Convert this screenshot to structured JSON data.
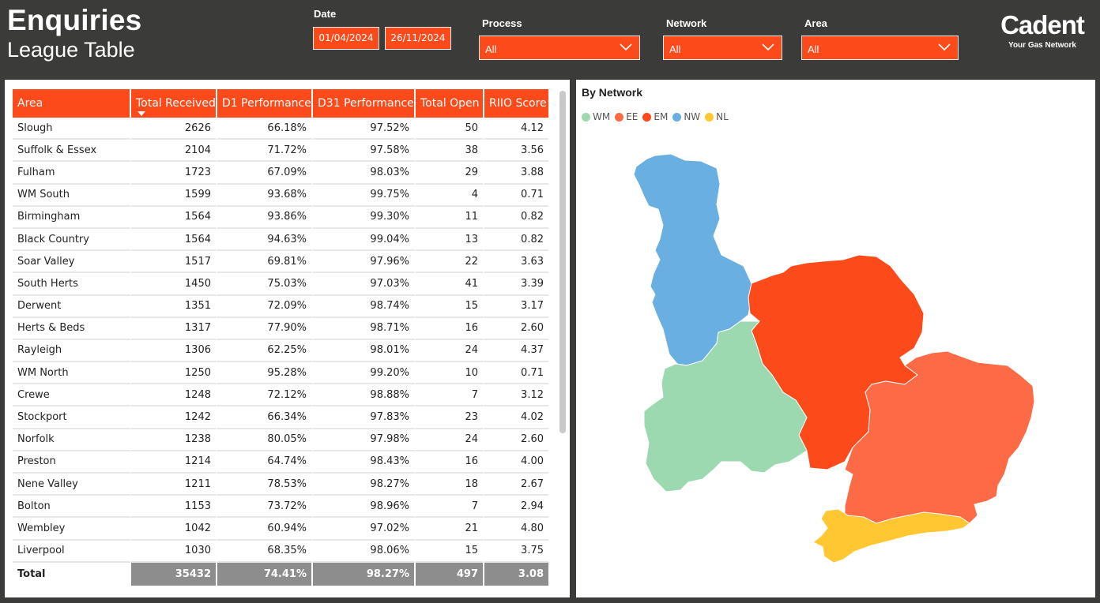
{
  "header": {
    "title": "Enquiries",
    "subtitle": "League Table"
  },
  "filters": {
    "date_label": "Date",
    "date_from": "01/04/2024",
    "date_to": "26/11/2024",
    "process_label": "Process",
    "process_value": "All",
    "network_label": "Network",
    "network_value": "All",
    "area_label": "Area",
    "area_value": "All"
  },
  "logo": {
    "brand": "Cadent",
    "tagline": "Your Gas Network"
  },
  "table": {
    "columns": [
      "Area",
      "Total Received",
      "D1 Performance",
      "D31 Performance",
      "Total Open",
      "RIIO Score"
    ],
    "rows": [
      [
        "Slough",
        "2626",
        "66.18%",
        "97.52%",
        "50",
        "4.12"
      ],
      [
        "Suffolk & Essex",
        "2104",
        "71.72%",
        "97.58%",
        "38",
        "3.56"
      ],
      [
        "Fulham",
        "1723",
        "67.09%",
        "98.03%",
        "29",
        "3.88"
      ],
      [
        "WM South",
        "1599",
        "93.68%",
        "99.75%",
        "4",
        "0.71"
      ],
      [
        "Birmingham",
        "1564",
        "93.86%",
        "99.30%",
        "11",
        "0.82"
      ],
      [
        "Black Country",
        "1564",
        "94.63%",
        "99.04%",
        "13",
        "0.82"
      ],
      [
        "Soar Valley",
        "1517",
        "69.81%",
        "97.96%",
        "22",
        "3.63"
      ],
      [
        "South Herts",
        "1450",
        "75.03%",
        "97.03%",
        "41",
        "3.39"
      ],
      [
        "Derwent",
        "1351",
        "72.09%",
        "98.74%",
        "15",
        "3.17"
      ],
      [
        "Herts & Beds",
        "1317",
        "77.90%",
        "98.71%",
        "16",
        "2.60"
      ],
      [
        "Rayleigh",
        "1306",
        "62.25%",
        "98.01%",
        "24",
        "4.37"
      ],
      [
        "WM North",
        "1250",
        "95.28%",
        "99.20%",
        "10",
        "0.71"
      ],
      [
        "Crewe",
        "1248",
        "72.12%",
        "98.88%",
        "7",
        "3.12"
      ],
      [
        "Stockport",
        "1242",
        "66.34%",
        "97.83%",
        "23",
        "4.02"
      ],
      [
        "Norfolk",
        "1238",
        "80.05%",
        "97.98%",
        "24",
        "2.60"
      ],
      [
        "Preston",
        "1214",
        "64.74%",
        "98.43%",
        "16",
        "4.00"
      ],
      [
        "Nene Valley",
        "1211",
        "78.53%",
        "98.27%",
        "18",
        "2.67"
      ],
      [
        "Bolton",
        "1153",
        "73.72%",
        "98.96%",
        "7",
        "2.94"
      ],
      [
        "Wembley",
        "1042",
        "60.94%",
        "97.02%",
        "21",
        "4.80"
      ],
      [
        "Liverpool",
        "1030",
        "68.35%",
        "98.06%",
        "15",
        "3.75"
      ]
    ],
    "total": [
      "Total",
      "35432",
      "74.41%",
      "98.27%",
      "497",
      "3.08"
    ]
  },
  "map": {
    "title": "By Network",
    "legend": [
      {
        "name": "WM",
        "color": "#9dd9b0"
      },
      {
        "name": "EE",
        "color": "#fc6a46"
      },
      {
        "name": "EM",
        "color": "#fc4a1a"
      },
      {
        "name": "NW",
        "color": "#6aafe2"
      },
      {
        "name": "NL",
        "color": "#ffc832"
      }
    ]
  }
}
